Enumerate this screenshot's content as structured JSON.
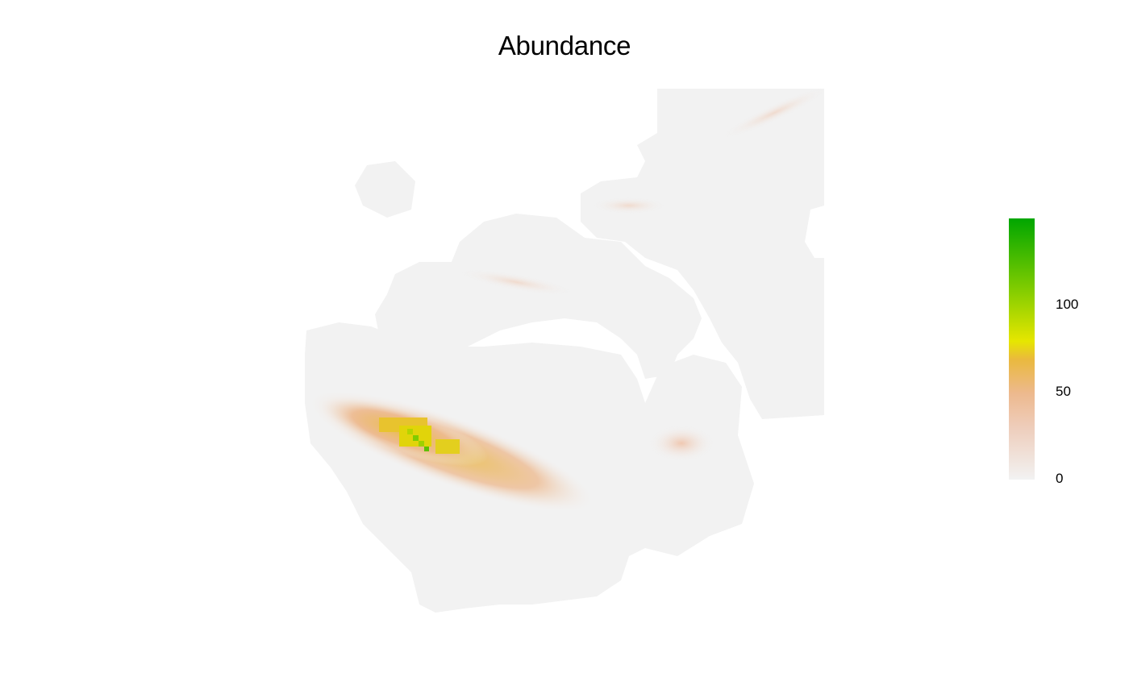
{
  "title": "Abundance",
  "legend": {
    "ticks": [
      {
        "label": "100",
        "value": 100
      },
      {
        "label": "50",
        "value": 50
      },
      {
        "label": "0",
        "value": 0
      }
    ],
    "range": [
      0,
      150
    ],
    "colors": [
      "#f2f2f2",
      "#edb98e",
      "#e8c32e",
      "#e6e600",
      "#7fcc00",
      "#00a600"
    ],
    "position": "right"
  },
  "map": {
    "background_color": "#f2f2f2",
    "hotspot_region": "south-west band",
    "peak_value": 150
  }
}
